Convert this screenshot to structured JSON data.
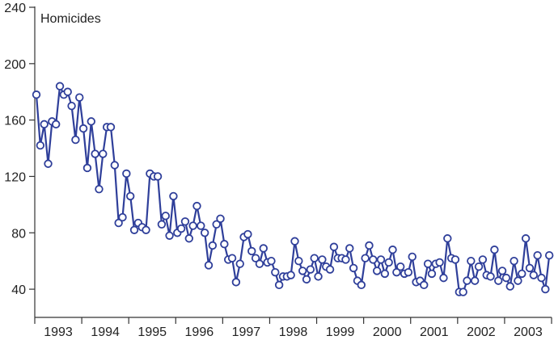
{
  "chart_data": {
    "type": "line",
    "title": "",
    "ylabel": "Homicides",
    "xlabel": "",
    "ylim": [
      20,
      240
    ],
    "yticks": [
      40,
      80,
      120,
      160,
      200,
      240
    ],
    "year_labels": [
      "1993",
      "1994",
      "1995",
      "1996",
      "1997",
      "1998",
      "1999",
      "2000",
      "2001",
      "2002",
      "2003"
    ],
    "x_start_year": 1993,
    "x_end_year": 2004,
    "grid": false,
    "legend": "none",
    "colors": {
      "series": "#2f3f9a",
      "axis": "#333333"
    },
    "series": [
      {
        "values": [
          178,
          142,
          157,
          129,
          159,
          157,
          184,
          178,
          180,
          170,
          146,
          176,
          154,
          126,
          159,
          136,
          111,
          136,
          155,
          155,
          128,
          87,
          91,
          122,
          106,
          82,
          87,
          84,
          82,
          122,
          120,
          120,
          86,
          92,
          78,
          106,
          80,
          83,
          88,
          76,
          85,
          99,
          85,
          80,
          57,
          71,
          86,
          90,
          72,
          61,
          62,
          45,
          58,
          77,
          79,
          67,
          62,
          58,
          69,
          59,
          60,
          52,
          43,
          49,
          49,
          50,
          74,
          60,
          53,
          47,
          54,
          62,
          49,
          61,
          56,
          54,
          70,
          62,
          62,
          61,
          69,
          55,
          46,
          43,
          62,
          71,
          61,
          53,
          61,
          51,
          59,
          68,
          52,
          56,
          51,
          52,
          63,
          45,
          46,
          43,
          58,
          51,
          58,
          59,
          48,
          76,
          62,
          61,
          38,
          38,
          46,
          60,
          46,
          56,
          61,
          50,
          49,
          68,
          46,
          53,
          48,
          42,
          60,
          46,
          51,
          76,
          55,
          50,
          64,
          48,
          40,
          64
        ]
      }
    ]
  }
}
